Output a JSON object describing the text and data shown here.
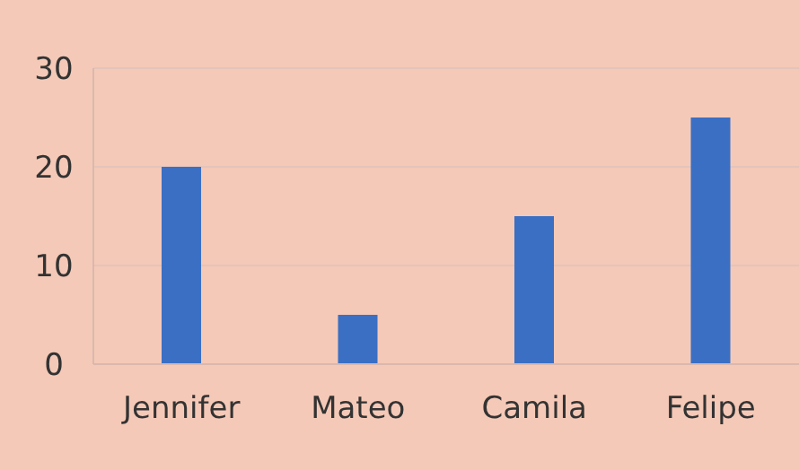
{
  "chart_data": {
    "type": "bar",
    "categories": [
      "Jennifer",
      "Mateo",
      "Camila",
      "Felipe"
    ],
    "values": [
      20,
      5,
      15,
      25
    ],
    "color": "#3a6fc4",
    "ylim": [
      0,
      30
    ],
    "yticks": [
      0,
      10,
      20,
      30
    ],
    "grid": "y"
  }
}
